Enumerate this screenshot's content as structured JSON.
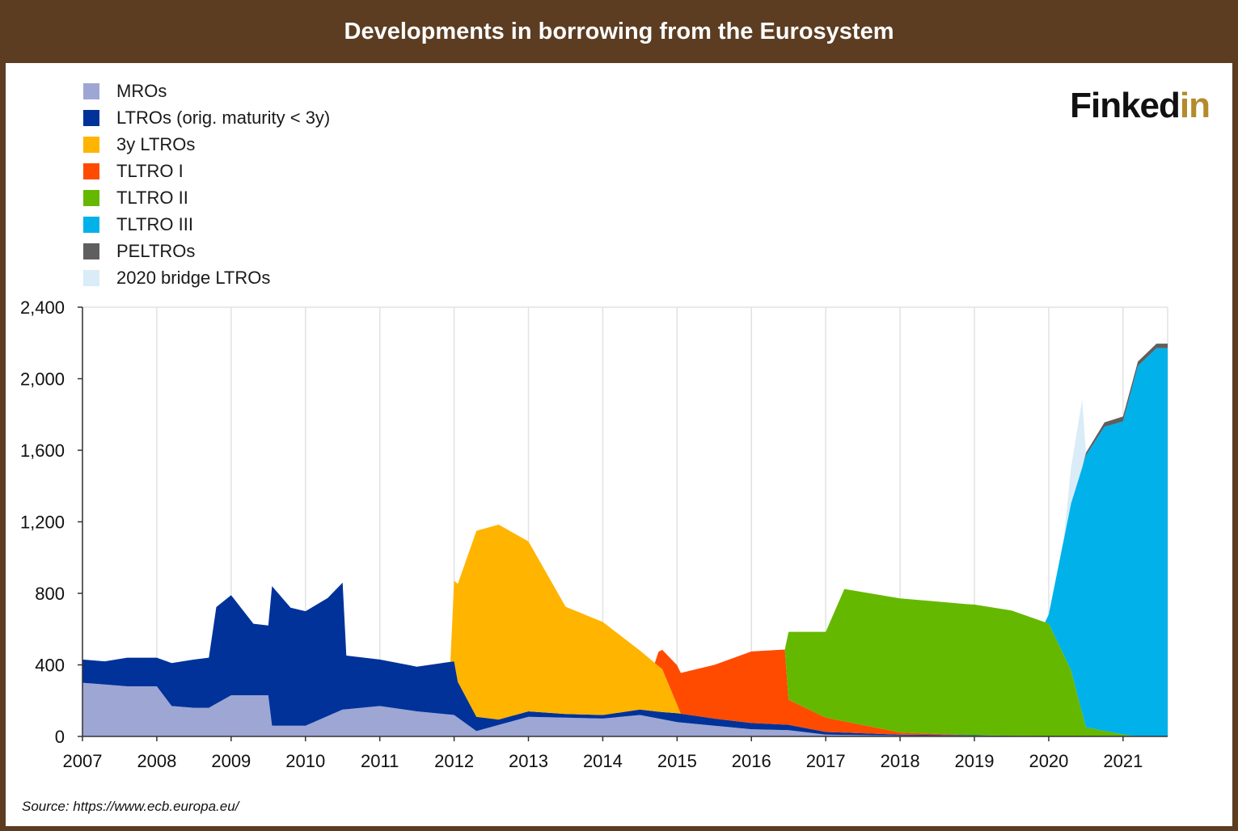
{
  "header": {
    "title": "Developments in borrowing from the Eurosystem"
  },
  "logo": {
    "text_main": "Finked",
    "text_accent": "in"
  },
  "source": {
    "text": "Source: https://www.ecb.europa.eu/"
  },
  "colors": {
    "header_bg": "#5c3d22",
    "mros": "#9ea6d4",
    "ltros": "#003299",
    "ltro3y": "#ffb400",
    "tltro1": "#ff4b00",
    "tltro2": "#65b800",
    "tltro3": "#00b1ea",
    "peltros": "#5f5f5f",
    "bridge": "#d9ecf8",
    "logo_accent": "#b58a2c"
  },
  "chart_data": {
    "type": "area",
    "stacked": true,
    "xlim": [
      2007,
      2021.6
    ],
    "ylim": [
      0,
      2400
    ],
    "x_ticks": [
      2007,
      2008,
      2009,
      2010,
      2011,
      2012,
      2013,
      2014,
      2015,
      2016,
      2017,
      2018,
      2019,
      2020,
      2021
    ],
    "x_tick_labels": [
      "2007",
      "2008",
      "2009",
      "2010",
      "2011",
      "2012",
      "2013",
      "2014",
      "2015",
      "2016",
      "2017",
      "2018",
      "2019",
      "2020",
      "2021"
    ],
    "y_ticks": [
      0,
      400,
      800,
      1200,
      1600,
      2000,
      2400
    ],
    "y_tick_labels": [
      "0",
      "400",
      "800",
      "1,200",
      "1,600",
      "2,000",
      "2,400"
    ],
    "grid": "vertical",
    "legend_position": "top-left",
    "series": [
      {
        "name": "MROs",
        "color": "#9ea6d4",
        "points": [
          [
            2007.0,
            300
          ],
          [
            2007.3,
            290
          ],
          [
            2007.6,
            280
          ],
          [
            2007.9,
            280
          ],
          [
            2008.0,
            280
          ],
          [
            2008.2,
            170
          ],
          [
            2008.5,
            160
          ],
          [
            2008.7,
            160
          ],
          [
            2009.0,
            230
          ],
          [
            2009.5,
            230
          ],
          [
            2009.55,
            60
          ],
          [
            2010.0,
            60
          ],
          [
            2010.5,
            150
          ],
          [
            2011.0,
            170
          ],
          [
            2011.5,
            140
          ],
          [
            2012.0,
            120
          ],
          [
            2012.3,
            30
          ],
          [
            2013.0,
            110
          ],
          [
            2014.0,
            100
          ],
          [
            2014.5,
            120
          ],
          [
            2015.0,
            80
          ],
          [
            2015.5,
            60
          ],
          [
            2016.0,
            40
          ],
          [
            2016.5,
            35
          ],
          [
            2017.0,
            10
          ],
          [
            2018.0,
            5
          ],
          [
            2019.0,
            4
          ],
          [
            2020.0,
            1
          ],
          [
            2021.6,
            1
          ]
        ]
      },
      {
        "name": "LTROs (orig. maturity < 3y)",
        "color": "#003299",
        "points": [
          [
            2007.0,
            130
          ],
          [
            2007.3,
            130
          ],
          [
            2007.6,
            160
          ],
          [
            2007.9,
            160
          ],
          [
            2008.0,
            160
          ],
          [
            2008.2,
            240
          ],
          [
            2008.5,
            270
          ],
          [
            2008.7,
            280
          ],
          [
            2008.8,
            540
          ],
          [
            2009.0,
            560
          ],
          [
            2009.3,
            400
          ],
          [
            2009.5,
            390
          ],
          [
            2009.55,
            780
          ],
          [
            2009.8,
            660
          ],
          [
            2010.0,
            640
          ],
          [
            2010.3,
            660
          ],
          [
            2010.5,
            710
          ],
          [
            2010.55,
            300
          ],
          [
            2011.0,
            260
          ],
          [
            2011.5,
            250
          ],
          [
            2012.0,
            300
          ],
          [
            2012.05,
            200
          ],
          [
            2012.3,
            80
          ],
          [
            2012.6,
            30
          ],
          [
            2013.0,
            30
          ],
          [
            2013.5,
            20
          ],
          [
            2014.0,
            20
          ],
          [
            2014.5,
            30
          ],
          [
            2014.8,
            40
          ],
          [
            2015.0,
            50
          ],
          [
            2015.5,
            40
          ],
          [
            2016.0,
            35
          ],
          [
            2016.5,
            30
          ],
          [
            2017.0,
            15
          ],
          [
            2018.0,
            5
          ],
          [
            2019.0,
            3
          ],
          [
            2020.0,
            0
          ],
          [
            2021.6,
            0
          ]
        ]
      },
      {
        "name": "3y LTROs",
        "color": "#ffb400",
        "points": [
          [
            2007.0,
            0
          ],
          [
            2011.95,
            0
          ],
          [
            2012.0,
            450
          ],
          [
            2012.3,
            1040
          ],
          [
            2012.6,
            1090
          ],
          [
            2013.0,
            950
          ],
          [
            2013.5,
            600
          ],
          [
            2014.0,
            520
          ],
          [
            2014.5,
            330
          ],
          [
            2014.8,
            240
          ],
          [
            2015.05,
            0
          ],
          [
            2021.6,
            0
          ]
        ]
      },
      {
        "name": "TLTRO I",
        "color": "#ff4b00",
        "points": [
          [
            2007.0,
            0
          ],
          [
            2014.7,
            0
          ],
          [
            2014.75,
            80
          ],
          [
            2015.0,
            220
          ],
          [
            2015.5,
            300
          ],
          [
            2016.0,
            400
          ],
          [
            2016.45,
            420
          ],
          [
            2016.5,
            140
          ],
          [
            2017.0,
            80
          ],
          [
            2018.0,
            12
          ],
          [
            2018.9,
            0
          ],
          [
            2021.6,
            0
          ]
        ]
      },
      {
        "name": "TLTRO II",
        "color": "#65b800",
        "points": [
          [
            2007.0,
            0
          ],
          [
            2016.45,
            0
          ],
          [
            2016.5,
            380
          ],
          [
            2017.0,
            480
          ],
          [
            2017.25,
            740
          ],
          [
            2018.0,
            750
          ],
          [
            2019.0,
            730
          ],
          [
            2019.5,
            700
          ],
          [
            2020.0,
            630
          ],
          [
            2020.3,
            370
          ],
          [
            2020.5,
            50
          ],
          [
            2021.0,
            10
          ],
          [
            2021.2,
            0
          ],
          [
            2021.6,
            0
          ]
        ]
      },
      {
        "name": "TLTRO III",
        "color": "#00b1ea",
        "points": [
          [
            2007.0,
            0
          ],
          [
            2019.95,
            0
          ],
          [
            2020.0,
            50
          ],
          [
            2020.5,
            1520
          ],
          [
            2020.75,
            1700
          ],
          [
            2021.0,
            1750
          ],
          [
            2021.2,
            2070
          ],
          [
            2021.45,
            2170
          ],
          [
            2021.6,
            2170
          ]
        ]
      },
      {
        "name": "PELTROs",
        "color": "#5f5f5f",
        "points": [
          [
            2007.0,
            0
          ],
          [
            2020.45,
            0
          ],
          [
            2020.5,
            15
          ],
          [
            2020.75,
            25
          ],
          [
            2021.0,
            28
          ],
          [
            2021.2,
            25
          ],
          [
            2021.45,
            25
          ],
          [
            2021.6,
            25
          ]
        ]
      },
      {
        "name": "2020 bridge LTROs",
        "color": "#d9ecf8",
        "points": [
          [
            2007.0,
            0
          ],
          [
            2020.2,
            0
          ],
          [
            2020.3,
            200
          ],
          [
            2020.45,
            380
          ],
          [
            2020.5,
            0
          ],
          [
            2021.6,
            0
          ]
        ]
      }
    ]
  }
}
